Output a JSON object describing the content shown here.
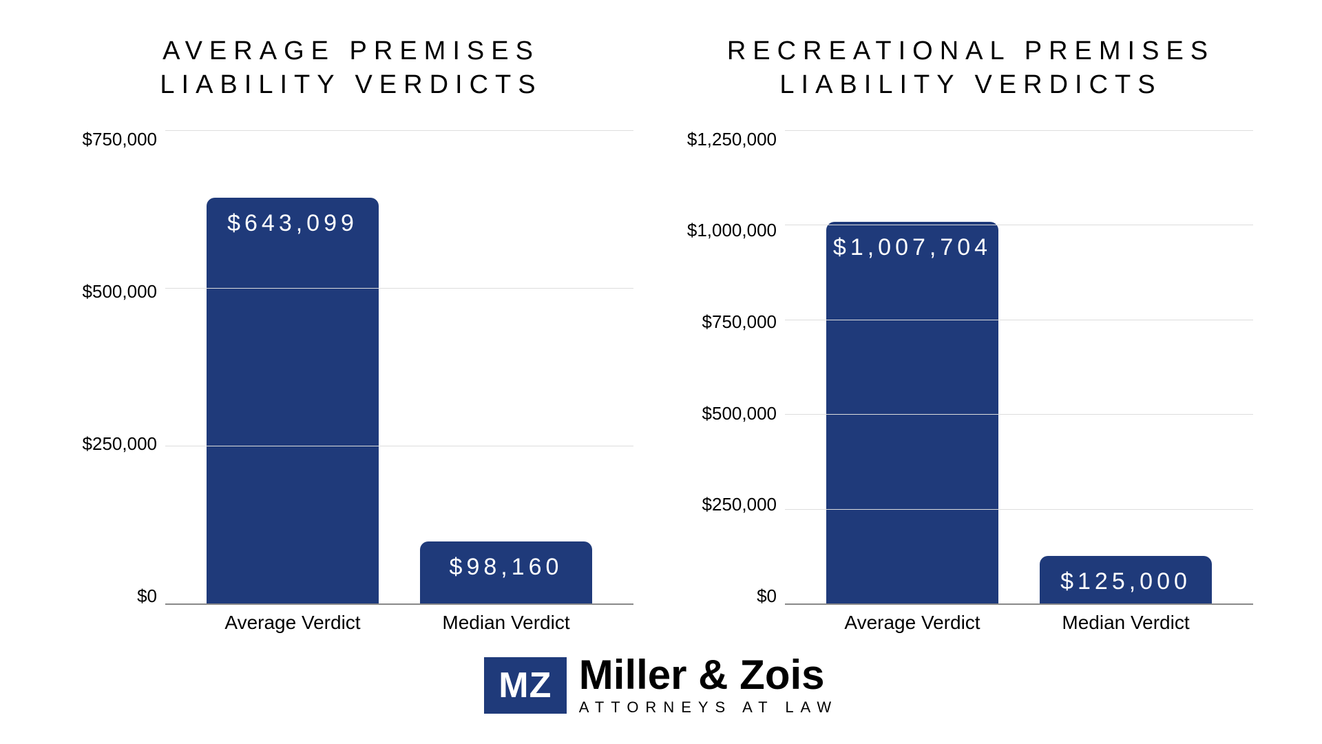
{
  "charts": [
    {
      "title": "AVERAGE PREMISES\nLIABILITY VERDICTS",
      "ymax": 750000,
      "ytick_step": 250000,
      "yticks": [
        "$750,000",
        "$500,000",
        "$250,000",
        "$0"
      ],
      "grid_color": "#dddddd",
      "axis_color": "#888888",
      "bar_color": "#1f3a7a",
      "label_color": "#ffffff",
      "title_fontsize": 38,
      "tick_fontsize": 26,
      "barlabel_fontsize": 34,
      "bars": [
        {
          "category": "Average Verdict",
          "value": 643099,
          "label": "$643,099"
        },
        {
          "category": "Median Verdict",
          "value": 98160,
          "label": "$98,160"
        }
      ]
    },
    {
      "title": "RECREATIONAL PREMISES\nLIABILITY VERDICTS",
      "ymax": 1250000,
      "ytick_step": 250000,
      "yticks": [
        "$1,250,000",
        "$1,000,000",
        "$750,000",
        "$500,000",
        "$250,000",
        "$0"
      ],
      "grid_color": "#dddddd",
      "axis_color": "#888888",
      "bar_color": "#1f3a7a",
      "label_color": "#ffffff",
      "title_fontsize": 38,
      "tick_fontsize": 26,
      "barlabel_fontsize": 34,
      "bars": [
        {
          "category": "Average Verdict",
          "value": 1007704,
          "label": "$1,007,704"
        },
        {
          "category": "Median Verdict",
          "value": 125000,
          "label": "$125,000"
        }
      ]
    }
  ],
  "brand": {
    "badge_text": "MZ",
    "badge_bg": "#1f3a7a",
    "badge_fg": "#ffffff",
    "name": "Miller & Zois",
    "tagline": "ATTORNEYS AT LAW",
    "name_color": "#000000"
  },
  "background_color": "#ffffff"
}
